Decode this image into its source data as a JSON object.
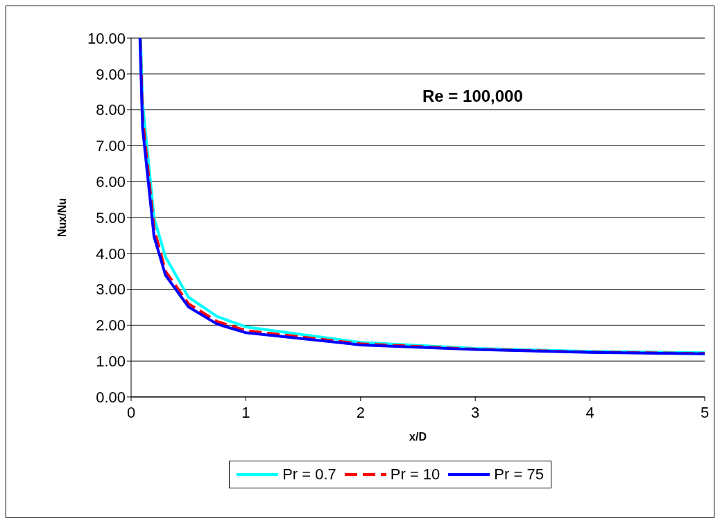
{
  "chart_data": {
    "type": "line",
    "xlabel": "x/D",
    "ylabel": "Nux/Nu",
    "annotations": [
      "Re = 100,000"
    ],
    "xlim": [
      0,
      5
    ],
    "xticks": [
      0,
      1,
      2,
      3,
      4,
      5
    ],
    "ylim": [
      0,
      10
    ],
    "yticks": [
      {
        "value": 0,
        "label": "0.00"
      },
      {
        "value": 1,
        "label": "1.00"
      },
      {
        "value": 2,
        "label": "2.00"
      },
      {
        "value": 3,
        "label": "3.00"
      },
      {
        "value": 4,
        "label": "4.00"
      },
      {
        "value": 5,
        "label": "5.00"
      },
      {
        "value": 6,
        "label": "6.00"
      },
      {
        "value": 7,
        "label": "7.00"
      },
      {
        "value": 8,
        "label": "8.00"
      },
      {
        "value": 9,
        "label": "9.00"
      },
      {
        "value": 10,
        "label": "10.00"
      }
    ],
    "grid": "y",
    "legend": "bottom",
    "marker": "none",
    "series": [
      {
        "name": "Pr = 0.7",
        "color": "#00ffff",
        "line_style": "solid",
        "x": [
          0.083,
          0.1,
          0.2,
          0.3,
          0.5,
          0.75,
          1,
          2,
          3,
          4,
          5
        ],
        "values": [
          10,
          8.2,
          5.0,
          3.9,
          2.78,
          2.24,
          1.95,
          1.52,
          1.35,
          1.27,
          1.23
        ]
      },
      {
        "name": "Pr = 10",
        "color": "#ff0000",
        "line_style": "dashed",
        "x": [
          0.08,
          0.1,
          0.2,
          0.3,
          0.5,
          0.75,
          1,
          2,
          3,
          4,
          5
        ],
        "values": [
          10,
          7.8,
          4.7,
          3.5,
          2.6,
          2.1,
          1.85,
          1.48,
          1.33,
          1.25,
          1.21
        ]
      },
      {
        "name": "Pr = 75",
        "color": "#0000ff",
        "line_style": "solid",
        "x": [
          0.077,
          0.1,
          0.2,
          0.3,
          0.5,
          0.75,
          1,
          2,
          3,
          4,
          5
        ],
        "values": [
          10,
          7.5,
          4.47,
          3.39,
          2.51,
          2.03,
          1.79,
          1.45,
          1.32,
          1.24,
          1.2
        ]
      }
    ]
  }
}
